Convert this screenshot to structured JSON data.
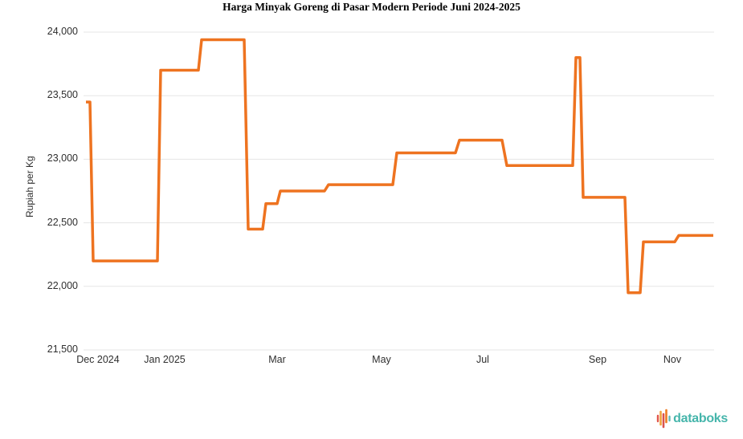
{
  "chart": {
    "title": "Harga Minyak Goreng di Pasar Modern Periode Juni 2024-2025",
    "ylabel": "Rupiah per Kg"
  },
  "chart_data": {
    "type": "line",
    "step": true,
    "title": "Harga Minyak Goreng di Pasar Modern Periode Juni 2024-2025",
    "xlabel": "",
    "ylabel": "Rupiah per Kg",
    "ylim": [
      21500,
      24000
    ],
    "grid": "horizontal",
    "legend": "none",
    "line_color": "#EE7320",
    "grid_color": "#E5E5E5",
    "y_ticks": [
      {
        "value": 24000,
        "label": "24,000"
      },
      {
        "value": 23500,
        "label": "23,500"
      },
      {
        "value": 23000,
        "label": "23,000"
      },
      {
        "value": 22500,
        "label": "22,500"
      },
      {
        "value": 22000,
        "label": "22,000"
      },
      {
        "value": 21500,
        "label": "21,500"
      }
    ],
    "x_ticks": [
      {
        "label": "Dec 2024",
        "pos": 0.0229
      },
      {
        "label": "Jan 2025",
        "pos": 0.1287
      },
      {
        "label": "Mar",
        "pos": 0.307
      },
      {
        "label": "May",
        "pos": 0.4726
      },
      {
        "label": "Jul",
        "pos": 0.6331
      },
      {
        "label": "Sep",
        "pos": 0.8153
      },
      {
        "label": "Nov",
        "pos": 0.9338
      }
    ],
    "series": [
      {
        "name": "Harga Minyak Goreng",
        "color": "#EE7320",
        "segments": [
          {
            "start": 0.0038,
            "end": 0.0102,
            "value": 23450
          },
          {
            "start": 0.0153,
            "end": 0.1172,
            "value": 22200
          },
          {
            "start": 0.1223,
            "end": 0.1822,
            "value": 23700
          },
          {
            "start": 0.1873,
            "end": 0.2548,
            "value": 23940
          },
          {
            "start": 0.2611,
            "end": 0.2841,
            "value": 22450
          },
          {
            "start": 0.2892,
            "end": 0.307,
            "value": 22650
          },
          {
            "start": 0.3121,
            "end": 0.3822,
            "value": 22750
          },
          {
            "start": 0.3885,
            "end": 0.4904,
            "value": 22800
          },
          {
            "start": 0.4968,
            "end": 0.5898,
            "value": 23050
          },
          {
            "start": 0.5962,
            "end": 0.6637,
            "value": 23150
          },
          {
            "start": 0.6713,
            "end": 0.7758,
            "value": 22950
          },
          {
            "start": 0.7809,
            "end": 0.7873,
            "value": 23800
          },
          {
            "start": 0.7924,
            "end": 0.8586,
            "value": 22700
          },
          {
            "start": 0.8637,
            "end": 0.8828,
            "value": 21950
          },
          {
            "start": 0.8879,
            "end": 0.9376,
            "value": 22350
          },
          {
            "start": 0.9439,
            "end": 0.9987,
            "value": 22400
          }
        ]
      }
    ]
  },
  "logo": {
    "text": "databoks",
    "text_color": "#45B5AB",
    "icon_colors": [
      "#E2574C",
      "#F2A33C",
      "#D9534F",
      "#EF7D23",
      "#64B9B4"
    ]
  }
}
